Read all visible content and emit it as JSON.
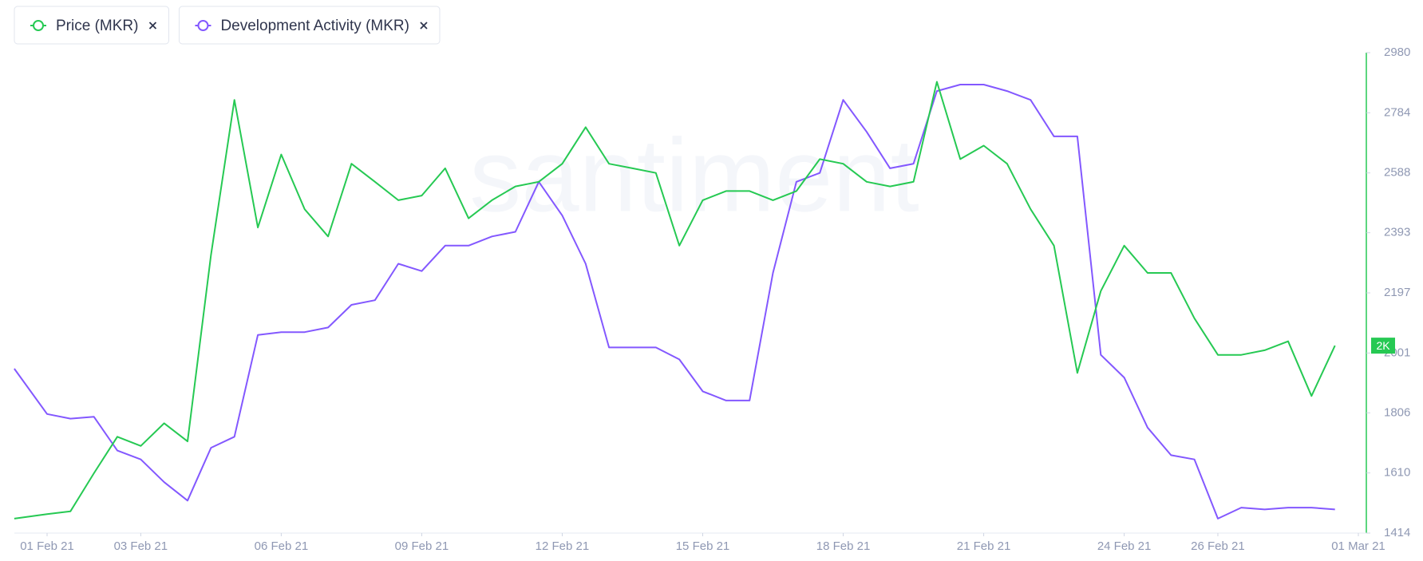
{
  "chart_data": {
    "type": "line",
    "watermark": "santiment",
    "x": [
      0.3,
      1,
      1.5,
      2,
      2.5,
      3,
      3.5,
      4,
      4.5,
      5,
      5.5,
      6,
      6.5,
      7,
      7.5,
      8,
      8.5,
      9,
      9.5,
      10,
      10.5,
      11,
      11.5,
      12,
      12.5,
      13,
      13.5,
      14,
      14.5,
      15,
      15.5,
      16,
      16.5,
      17,
      17.5,
      18,
      18.5,
      19,
      19.5,
      20,
      20.5,
      21,
      21.5,
      22,
      22.5,
      23,
      23.5,
      24,
      24.5,
      25,
      25.5,
      26,
      26.5,
      27,
      27.5,
      28,
      28.5
    ],
    "xlim": [
      0.3,
      29
    ],
    "xticks": [
      {
        "value": 1,
        "label": "01 Feb 21"
      },
      {
        "value": 3,
        "label": "03 Feb 21"
      },
      {
        "value": 6,
        "label": "06 Feb 21"
      },
      {
        "value": 9,
        "label": "09 Feb 21"
      },
      {
        "value": 12,
        "label": "12 Feb 21"
      },
      {
        "value": 15,
        "label": "15 Feb 21"
      },
      {
        "value": 18,
        "label": "18 Feb 21"
      },
      {
        "value": 21,
        "label": "21 Feb 21"
      },
      {
        "value": 24,
        "label": "24 Feb 21"
      },
      {
        "value": 26,
        "label": "26 Feb 21"
      },
      {
        "value": 29,
        "label": "01 Mar 21"
      }
    ],
    "ylim": [
      1414,
      2980
    ],
    "yticks": [
      1414,
      1610,
      1806,
      2001,
      2197,
      2393,
      2588,
      2784,
      2980
    ],
    "badge": "2K",
    "series": [
      {
        "name": "Price (MKR)",
        "color": "#26c953",
        "values": [
          1461,
          1476,
          1485,
          1609,
          1728,
          1698,
          1772,
          1713,
          2321,
          2826,
          2410,
          2648,
          2470,
          2381,
          2618,
          2559,
          2499,
          2514,
          2603,
          2440,
          2499,
          2544,
          2559,
          2618,
          2737,
          2618,
          2603,
          2588,
          2351,
          2499,
          2529,
          2529,
          2499,
          2529,
          2633,
          2618,
          2559,
          2544,
          2559,
          2885,
          2633,
          2677,
          2618,
          2470,
          2351,
          1936,
          2203,
          2351,
          2262,
          2262,
          2114,
          1995,
          1995,
          2010,
          2039,
          1861,
          2025
        ]
      },
      {
        "name": "Development Activity (MKR)",
        "color": "#8358ff",
        "values": [
          1950,
          1802,
          1787,
          1793,
          1683,
          1654,
          1580,
          1520,
          1692,
          1728,
          2060,
          2069,
          2069,
          2084,
          2158,
          2173,
          2292,
          2268,
          2351,
          2351,
          2381,
          2396,
          2559,
          2449,
          2292,
          2019,
          2019,
          2019,
          1980,
          1876,
          1846,
          1846,
          2262,
          2559,
          2588,
          2826,
          2722,
          2603,
          2618,
          2855,
          2876,
          2876,
          2855,
          2826,
          2707,
          2707,
          1995,
          1921,
          1758,
          1668,
          1654,
          1461,
          1497,
          1491,
          1497,
          1497,
          1491
        ]
      }
    ]
  }
}
